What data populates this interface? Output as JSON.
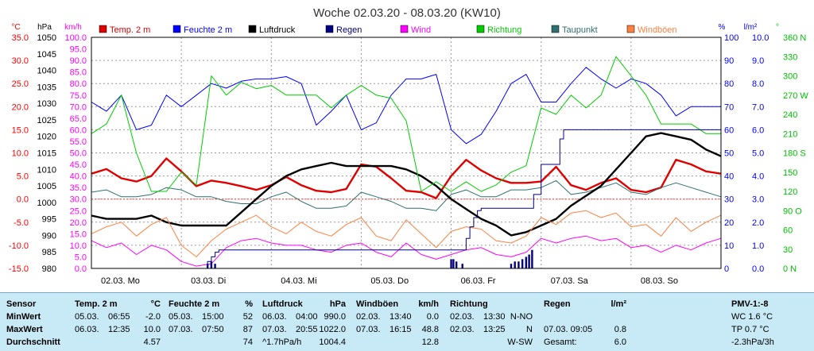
{
  "chart_data": {
    "type": "line",
    "title": "Woche 02.03.20 - 08.03.20 (KW10)",
    "x_labels": [
      "02.03.  Mo",
      "03.03.  Di",
      "04.03.  Mi",
      "05.03.  Do",
      "06.03.  Fr",
      "07.03.  Sa",
      "08.03.  So"
    ],
    "axes": {
      "temp": {
        "unit": "°C",
        "ylim": [
          -15,
          35
        ],
        "ticks": [
          "35.0",
          "30.0",
          "25.0",
          "20.0",
          "15.0",
          "10.0",
          "5.0",
          "0.0",
          "-5.0",
          "-10.0",
          "-15.0"
        ],
        "color": "#ff0000"
      },
      "pressure": {
        "unit": "hPa",
        "ylim": [
          980,
          1050
        ],
        "ticks": [
          "1050",
          "1045",
          "1040",
          "1035",
          "1030",
          "1025",
          "1020",
          "1015",
          "1010",
          "1005",
          "1000",
          "995",
          "990",
          "985",
          "980"
        ],
        "color": "#000000"
      },
      "wind": {
        "unit": "km/h",
        "ylim": [
          0,
          100
        ],
        "ticks": [
          "100.0",
          "95.0",
          "90.0",
          "85.0",
          "80.0",
          "75.0",
          "70.0",
          "65.0",
          "60.0",
          "55.0",
          "50.0",
          "45.0",
          "40.0",
          "35.0",
          "30.0",
          "25.0",
          "20.0",
          "15.0",
          "10.0",
          "5.0",
          "0.0"
        ],
        "color": "#ff00ff"
      },
      "humidity": {
        "unit": "%",
        "ylim": [
          0,
          100
        ],
        "ticks": [
          "100",
          "90",
          "80",
          "70",
          "60",
          "50",
          "40",
          "30",
          "20",
          "10",
          "0"
        ],
        "color": "#0000ff"
      },
      "rain": {
        "unit": "l/m²",
        "ylim": [
          0,
          10
        ],
        "ticks": [
          "10.0",
          "9.0",
          "8.0",
          "7.0",
          "6.0",
          "5.0",
          "4.0",
          "3.0",
          "2.0",
          "1.0",
          "0.0"
        ],
        "color": "#0000ff"
      },
      "direction": {
        "unit": "°",
        "ylim": [
          0,
          360
        ],
        "ticks": [
          "360 N",
          "330",
          "300",
          "270 W",
          "240",
          "210",
          "180 S",
          "150",
          "120",
          "90 O",
          "60",
          "30",
          "0 N"
        ],
        "color": "#00c000"
      }
    },
    "legend": [
      {
        "name": "Temp. 2 m",
        "color": "#e00000"
      },
      {
        "name": "Feuchte  2 m",
        "color": "#0000ff"
      },
      {
        "name": "Luftdruck",
        "color": "#000000"
      },
      {
        "name": "Regen",
        "color": "#000080"
      },
      {
        "name": "Wind",
        "color": "#ff00ff"
      },
      {
        "name": "Richtung",
        "color": "#00cc00"
      },
      {
        "name": "Taupunkt",
        "color": "#2f6f6f"
      },
      {
        "name": "Windböen",
        "color": "#ff8040"
      }
    ],
    "series": [
      {
        "name": "Temp. 2 m",
        "axis": "temp",
        "color": "#e00000",
        "width": 2.4,
        "x": [
          0,
          4,
          8,
          12,
          16,
          20,
          24,
          28,
          32,
          36,
          40,
          44,
          48,
          52,
          56,
          60,
          64,
          68,
          72,
          76,
          80,
          84,
          88,
          92,
          96,
          100,
          104,
          108,
          112,
          116,
          120,
          124,
          128,
          132,
          136,
          140,
          144,
          148,
          152,
          156,
          160,
          164,
          168
        ],
        "y": [
          5.5,
          6.5,
          4.5,
          3.8,
          5.0,
          8.8,
          6.0,
          2.8,
          4.0,
          3.5,
          2.8,
          2.0,
          3.0,
          4.8,
          3.0,
          1.8,
          1.5,
          2.2,
          7.5,
          7.0,
          4.5,
          1.8,
          1.5,
          0.2,
          5.0,
          8.5,
          6.2,
          4.5,
          3.5,
          3.5,
          3.8,
          7.0,
          3.0,
          2.0,
          3.5,
          4.5,
          2.0,
          1.5,
          2.5,
          8.5,
          7.5,
          6.0,
          5.5
        ]
      },
      {
        "name": "Taupunkt",
        "axis": "temp",
        "color": "#2f6f6f",
        "width": 1,
        "x": [
          0,
          4,
          8,
          12,
          16,
          20,
          24,
          28,
          32,
          36,
          40,
          44,
          48,
          52,
          56,
          60,
          64,
          68,
          72,
          76,
          80,
          84,
          88,
          92,
          96,
          100,
          104,
          108,
          112,
          116,
          120,
          124,
          128,
          132,
          136,
          140,
          144,
          148,
          152,
          156,
          160,
          164,
          168
        ],
        "y": [
          1.5,
          2.0,
          0.5,
          0.5,
          1.0,
          2.5,
          2.0,
          0.5,
          0.5,
          -0.5,
          -1.0,
          -1.0,
          0.5,
          1.5,
          -0.5,
          -2.0,
          -2.0,
          -1.5,
          1.5,
          0.5,
          -0.5,
          -2.0,
          -2.0,
          -2.5,
          1.0,
          2.0,
          0.5,
          0.5,
          2.0,
          2.0,
          2.5,
          4.0,
          1.0,
          1.5,
          2.5,
          3.5,
          1.5,
          1.0,
          2.5,
          3.5,
          2.5,
          1.5,
          0.5
        ]
      },
      {
        "name": "Luftdruck",
        "axis": "pressure",
        "color": "#000000",
        "width": 2.4,
        "x": [
          0,
          4,
          8,
          12,
          16,
          20,
          24,
          28,
          32,
          36,
          40,
          44,
          48,
          52,
          56,
          60,
          64,
          68,
          72,
          76,
          80,
          84,
          88,
          92,
          96,
          100,
          104,
          108,
          112,
          116,
          120,
          124,
          128,
          132,
          136,
          140,
          144,
          148,
          152,
          156,
          160,
          164,
          168
        ],
        "y": [
          996,
          995,
          995,
          995,
          996,
          994,
          993,
          993,
          993,
          993,
          997,
          1001,
          1005,
          1008,
          1010,
          1011,
          1012,
          1011,
          1011,
          1011,
          1011,
          1010,
          1008,
          1005,
          1001,
          998,
          995,
          993,
          990,
          991,
          993,
          995,
          999,
          1002,
          1005,
          1010,
          1015,
          1020,
          1021,
          1020,
          1019,
          1016,
          1014
        ]
      },
      {
        "name": "Feuchte  2 m",
        "axis": "humidity",
        "color": "#0000ff",
        "width": 1,
        "x": [
          0,
          4,
          8,
          12,
          16,
          20,
          24,
          28,
          32,
          36,
          40,
          44,
          48,
          52,
          56,
          60,
          64,
          68,
          72,
          76,
          80,
          84,
          88,
          92,
          96,
          100,
          104,
          108,
          112,
          116,
          120,
          124,
          128,
          132,
          136,
          140,
          144,
          148,
          152,
          156,
          160,
          164,
          168
        ],
        "y": [
          72,
          68,
          75,
          60,
          62,
          75,
          70,
          75,
          80,
          78,
          81,
          82,
          82,
          83,
          80,
          62,
          68,
          75,
          60,
          63,
          75,
          82,
          82,
          84,
          60,
          54,
          58,
          68,
          80,
          84,
          72,
          72,
          80,
          87,
          82,
          78,
          82,
          80,
          75,
          66,
          70,
          70,
          70
        ]
      },
      {
        "name": "Wind",
        "axis": "wind",
        "color": "#ff00ff",
        "width": 1,
        "x": [
          0,
          4,
          8,
          12,
          16,
          20,
          24,
          28,
          32,
          36,
          40,
          44,
          48,
          52,
          56,
          60,
          64,
          68,
          72,
          76,
          80,
          84,
          88,
          92,
          96,
          100,
          104,
          108,
          112,
          116,
          120,
          124,
          128,
          132,
          136,
          140,
          144,
          148,
          152,
          156,
          160,
          164,
          168
        ],
        "y": [
          12,
          9,
          11,
          6,
          10,
          8,
          3,
          1,
          2,
          9,
          12,
          13,
          11,
          10,
          10,
          8,
          7,
          10,
          11,
          7,
          5,
          11,
          6,
          4,
          6,
          8,
          9,
          6,
          5,
          7,
          13,
          11,
          13,
          14,
          12,
          13,
          9,
          10,
          7,
          10,
          8,
          11,
          13
        ]
      },
      {
        "name": "Windböen",
        "axis": "wind",
        "color": "#ff8040",
        "width": 1,
        "x": [
          0,
          4,
          8,
          12,
          16,
          20,
          24,
          28,
          32,
          36,
          40,
          44,
          48,
          52,
          56,
          60,
          64,
          68,
          72,
          76,
          80,
          84,
          88,
          92,
          96,
          100,
          104,
          108,
          112,
          116,
          120,
          124,
          128,
          132,
          136,
          140,
          144,
          148,
          152,
          156,
          160,
          164,
          168
        ],
        "y": [
          15,
          18,
          20,
          14,
          19,
          22,
          10,
          5,
          12,
          17,
          20,
          23,
          18,
          15,
          20,
          16,
          14,
          19,
          22,
          14,
          12,
          21,
          15,
          9,
          16,
          18,
          17,
          12,
          11,
          14,
          22,
          19,
          24,
          25,
          22,
          24,
          18,
          19,
          14,
          22,
          16,
          20,
          23
        ]
      },
      {
        "name": "Richtung",
        "axis": "direction",
        "color": "#00cc00",
        "width": 1,
        "x": [
          0,
          4,
          8,
          12,
          16,
          20,
          24,
          28,
          32,
          36,
          40,
          44,
          48,
          52,
          56,
          60,
          64,
          68,
          72,
          76,
          80,
          84,
          88,
          92,
          96,
          100,
          104,
          108,
          112,
          116,
          120,
          124,
          128,
          132,
          136,
          140,
          144,
          148,
          152,
          156,
          160,
          164,
          168
        ],
        "y": [
          210,
          225,
          270,
          180,
          120,
          120,
          150,
          130,
          300,
          270,
          290,
          280,
          285,
          270,
          270,
          270,
          250,
          270,
          285,
          270,
          265,
          230,
          120,
          135,
          120,
          135,
          120,
          130,
          150,
          160,
          250,
          240,
          270,
          250,
          270,
          330,
          300,
          270,
          225,
          225,
          225,
          210,
          210
        ]
      },
      {
        "name": "Regen",
        "axis": "rain",
        "color": "#000080",
        "width": 1,
        "step": true,
        "x": [
          0,
          28,
          31,
          32,
          33,
          34,
          96,
          100,
          101,
          102,
          103,
          104,
          112,
          118,
          120,
          125,
          126,
          127,
          128,
          168
        ],
        "y": [
          0,
          0,
          0.3,
          0.5,
          0.7,
          0.8,
          0.8,
          1.3,
          1.8,
          2.2,
          2.5,
          2.6,
          2.6,
          3.2,
          4.5,
          5.6,
          6.0,
          6.0,
          6.0,
          6.0
        ]
      },
      {
        "name": "Regen (Stunde)",
        "axis": "rain",
        "color": "#000080",
        "bars": true,
        "x": [
          31,
          32,
          33,
          96,
          96.6,
          97.4,
          99,
          112,
          113,
          114,
          115,
          116,
          116.8,
          117.6
        ],
        "y": [
          0.2,
          0.3,
          0.2,
          0.4,
          0.4,
          0.3,
          0.2,
          0.2,
          0.3,
          0.3,
          0.4,
          0.5,
          0.6,
          0.8
        ]
      }
    ]
  },
  "stats": {
    "sensor": {
      "header": "Sensor",
      "rows": [
        "MinWert",
        "MaxWert",
        "Durchschnitt"
      ]
    },
    "temp": {
      "header": "Temp. 2 m",
      "unit": "°C",
      "rows": [
        [
          "05.03.",
          "06:55",
          "-2.0"
        ],
        [
          "06.03.",
          "12:35",
          "10.0"
        ],
        [
          "",
          "",
          "4.57"
        ]
      ]
    },
    "humidity": {
      "header": "Feuchte  2 m",
      "unit": "%",
      "rows": [
        [
          "05.03.",
          "15:00",
          "52"
        ],
        [
          "07.03.",
          "07:50",
          "87"
        ],
        [
          "",
          "",
          "74"
        ]
      ]
    },
    "pressure": {
      "header": "Luftdruck",
      "unit": "hPa",
      "rows": [
        [
          "06.03.",
          "04:00",
          "990.0"
        ],
        [
          "07.03.",
          "20:55",
          "1022.0"
        ],
        [
          "^1.7hPa/h",
          "",
          "1004.4"
        ]
      ]
    },
    "gusts": {
      "header": "Windböen",
      "unit": "km/h",
      "rows": [
        [
          "02.03.",
          "13:40",
          "0.0"
        ],
        [
          "07.03.",
          "16:15",
          "48.8"
        ],
        [
          "",
          "",
          "12.8"
        ]
      ]
    },
    "direction": {
      "header": "Richtung",
      "rows": [
        [
          "02.03.",
          "13:30",
          "N-NO"
        ],
        [
          "02.03.",
          "13:25",
          "N"
        ],
        [
          "",
          "",
          "W-SW"
        ]
      ]
    },
    "rain": {
      "header": "Regen",
      "unit": "l/m²",
      "rows": [
        [
          "",
          ""
        ],
        [
          "07.03.  09:05",
          "0.8"
        ],
        [
          "Gesamt:",
          "6.0"
        ]
      ]
    },
    "pmv": {
      "header": "PMV-1:-8",
      "rows": [
        "WC 1.6 °C",
        "TP 0.7 °C",
        "-2.3hPa/3h"
      ]
    }
  }
}
